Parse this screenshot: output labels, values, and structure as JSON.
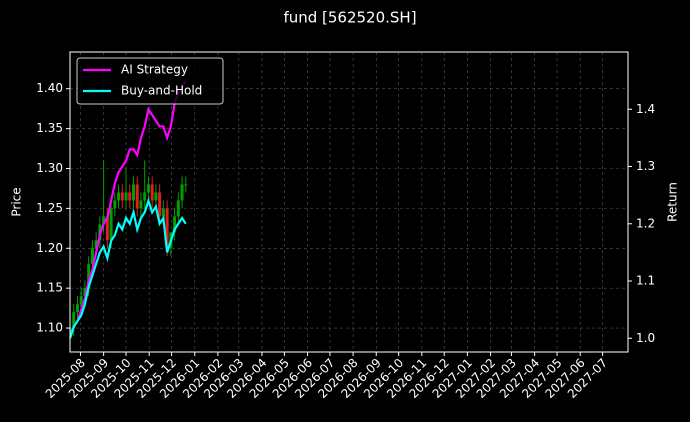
{
  "chart_data": {
    "type": "candlestick",
    "title": "fund [562520.SH]",
    "ylabel": "Price",
    "y2label": "Return",
    "x": [
      "2025-07-18",
      "2025-07-23",
      "2025-07-28",
      "2025-08-02",
      "2025-08-07",
      "2025-08-12",
      "2025-08-17",
      "2025-08-22",
      "2025-08-27",
      "2025-09-01",
      "2025-09-06",
      "2025-09-11",
      "2025-09-16",
      "2025-09-21",
      "2025-09-26",
      "2025-10-01",
      "2025-10-06",
      "2025-10-11",
      "2025-10-16",
      "2025-10-21",
      "2025-10-26",
      "2025-10-31",
      "2025-11-05",
      "2025-11-10",
      "2025-11-15",
      "2025-11-20",
      "2025-11-25",
      "2025-11-30",
      "2025-12-05",
      "2025-12-10",
      "2025-12-15",
      "2025-12-20"
    ],
    "open": [
      1.09,
      1.1,
      1.12,
      1.13,
      1.14,
      1.15,
      1.18,
      1.2,
      1.21,
      1.23,
      1.24,
      1.21,
      1.25,
      1.26,
      1.27,
      1.26,
      1.27,
      1.26,
      1.28,
      1.25,
      1.26,
      1.27,
      1.28,
      1.26,
      1.27,
      1.24,
      1.25,
      1.2,
      1.22,
      1.24,
      1.26,
      1.28
    ],
    "high": [
      1.11,
      1.13,
      1.14,
      1.15,
      1.16,
      1.19,
      1.21,
      1.22,
      1.24,
      1.31,
      1.25,
      1.26,
      1.27,
      1.28,
      1.28,
      1.3,
      1.28,
      1.29,
      1.29,
      1.27,
      1.31,
      1.29,
      1.29,
      1.28,
      1.28,
      1.26,
      1.26,
      1.22,
      1.25,
      1.27,
      1.29,
      1.29
    ],
    "low": [
      1.08,
      1.09,
      1.11,
      1.12,
      1.13,
      1.14,
      1.17,
      1.19,
      1.2,
      1.22,
      1.2,
      1.2,
      1.24,
      1.25,
      1.25,
      1.25,
      1.25,
      1.25,
      1.24,
      1.24,
      1.25,
      1.26,
      1.25,
      1.25,
      1.23,
      1.23,
      1.19,
      1.19,
      1.21,
      1.23,
      1.25,
      1.27
    ],
    "close": [
      1.1,
      1.12,
      1.13,
      1.14,
      1.15,
      1.18,
      1.2,
      1.21,
      1.23,
      1.24,
      1.21,
      1.25,
      1.26,
      1.27,
      1.26,
      1.27,
      1.26,
      1.28,
      1.25,
      1.26,
      1.27,
      1.28,
      1.26,
      1.27,
      1.24,
      1.25,
      1.2,
      1.22,
      1.24,
      1.26,
      1.28,
      1.28
    ],
    "up_color": "#00a000",
    "down_color": "#e02020",
    "series": [
      {
        "name": "AI Strategy",
        "color": "#ff00ff",
        "axis": "y2",
        "values": [
          1.0,
          1.02,
          1.03,
          1.05,
          1.07,
          1.1,
          1.12,
          1.15,
          1.18,
          1.2,
          1.21,
          1.24,
          1.27,
          1.29,
          1.3,
          1.31,
          1.33,
          1.33,
          1.32,
          1.35,
          1.37,
          1.4,
          1.39,
          1.38,
          1.37,
          1.37,
          1.35,
          1.37,
          1.41,
          1.43,
          1.44,
          1.45
        ]
      },
      {
        "name": "Buy-and-Hold",
        "color": "#00ffff",
        "axis": "y2",
        "values": [
          1.0,
          1.02,
          1.03,
          1.04,
          1.06,
          1.09,
          1.11,
          1.13,
          1.15,
          1.16,
          1.14,
          1.17,
          1.18,
          1.2,
          1.19,
          1.21,
          1.2,
          1.22,
          1.19,
          1.21,
          1.22,
          1.24,
          1.22,
          1.23,
          1.2,
          1.21,
          1.15,
          1.17,
          1.19,
          1.2,
          1.21,
          1.2
        ]
      }
    ],
    "xlim": [
      "2025-07-18",
      "2027-08-04"
    ],
    "xticks": [
      "2025-08",
      "2025-09",
      "2025-10",
      "2025-11",
      "2025-12",
      "2026-01",
      "2026-02",
      "2026-03",
      "2026-04",
      "2026-05",
      "2026-06",
      "2026-07",
      "2026-08",
      "2026-09",
      "2026-10",
      "2026-11",
      "2026-12",
      "2027-01",
      "2027-02",
      "2027-03",
      "2027-04",
      "2027-05",
      "2027-06",
      "2027-07"
    ],
    "ylim": [
      1.07,
      1.446
    ],
    "yticks": [
      {
        "value": 1.1,
        "label": "1.10"
      },
      {
        "value": 1.15,
        "label": "1.15"
      },
      {
        "value": 1.2,
        "label": "1.20"
      },
      {
        "value": 1.25,
        "label": "1.25"
      },
      {
        "value": 1.3,
        "label": "1.30"
      },
      {
        "value": 1.35,
        "label": "1.35"
      },
      {
        "value": 1.4,
        "label": "1.40"
      }
    ],
    "y2lim": [
      0.976,
      1.5
    ],
    "y2ticks": [
      {
        "value": 1,
        "label": "1.0"
      },
      1.1,
      1.2,
      1.3,
      1.4
    ],
    "grid": true,
    "legend": "upper left"
  }
}
